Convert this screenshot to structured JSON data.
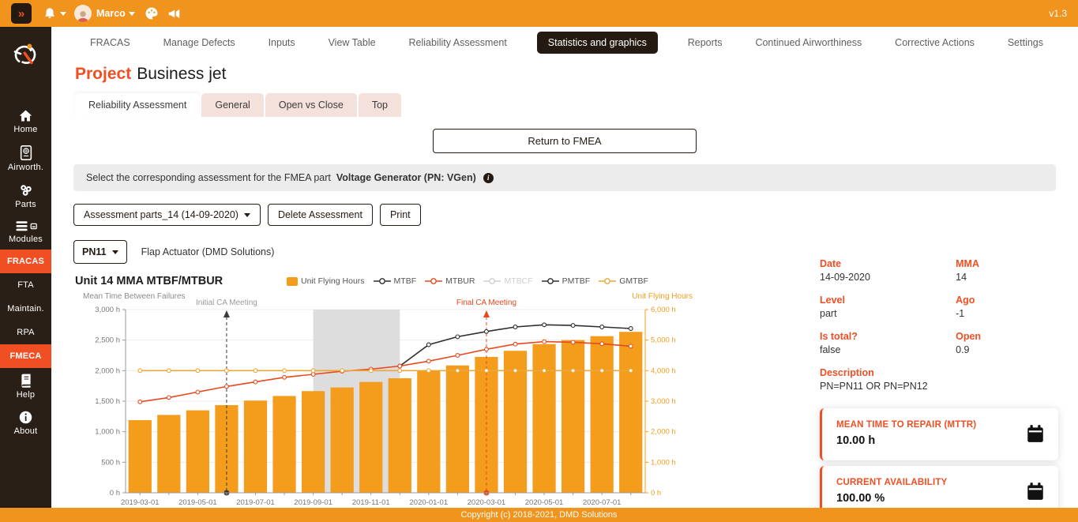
{
  "topbar": {
    "user": "Marco",
    "version": "v1.3"
  },
  "nav": {
    "items": [
      "FRACAS",
      "Manage Defects",
      "Inputs",
      "View Table",
      "Reliability Assessment",
      "Statistics and graphics",
      "Reports",
      "Continued Airworthiness",
      "Corrective Actions",
      "Settings"
    ],
    "active": "Statistics and graphics"
  },
  "sidebar": {
    "items": [
      "Home",
      "Airworth.",
      "Parts",
      "Modules",
      "FRACAS",
      "FTA",
      "Maintain.",
      "RPA",
      "FMECA",
      "Help",
      "About"
    ],
    "active_items": [
      "FRACAS",
      "FMECA"
    ]
  },
  "page": {
    "title_prefix": "Project",
    "title": "Business jet"
  },
  "subtabs": {
    "items": [
      "Reliability Assessment",
      "General",
      "Open vs Close",
      "Top"
    ],
    "active": "Reliability Assessment"
  },
  "actions": {
    "return_button": "Return to FMEA",
    "assessment_dropdown": "Assessment parts_14 (14-09-2020)",
    "delete_button": "Delete Assessment",
    "print_button": "Print",
    "pn_dropdown": "PN11",
    "part_label": "Flap Actuator (DMD Solutions)"
  },
  "info_bar": {
    "text": "Select the corresponding assessment for the FMEA part",
    "highlight": "Voltage Generator (PN: VGen)"
  },
  "details": {
    "rows": [
      {
        "label": "Date",
        "value": "14-09-2020"
      },
      {
        "label": "MMA",
        "value": "14"
      },
      {
        "label": "Level",
        "value": "part"
      },
      {
        "label": "Ago",
        "value": "-1"
      },
      {
        "label": "Is total?",
        "value": "false"
      },
      {
        "label": "Open",
        "value": "0.9"
      }
    ],
    "description": {
      "label": "Description",
      "value": "PN=PN11 OR PN=PN12"
    }
  },
  "cards": [
    {
      "title": "MEAN TIME TO REPAIR (MTTR)",
      "value": "10.00 h"
    },
    {
      "title": "CURRENT AVAILABILITY",
      "value": "100.00 %"
    }
  ],
  "footer": {
    "copyright": "Copyright (c) 2018-2021, DMD Solutions"
  },
  "colors": {
    "accent": "#F04E23",
    "orange": "#F0941E",
    "bar": "#F49D1D",
    "dark": "#241A12"
  },
  "chart_data": {
    "type": "bar",
    "title": "Unit 14 MMA MTBF/MTBUR",
    "months": [
      "2019-03",
      "2019-04",
      "2019-05",
      "2019-06",
      "2019-07",
      "2019-08",
      "2019-09",
      "2019-10",
      "2019-11",
      "2019-12",
      "2020-01",
      "2020-02",
      "2020-03",
      "2020-04",
      "2020-05",
      "2020-06",
      "2020-07",
      "2020-08"
    ],
    "x_tick_month_indices": [
      0,
      2,
      4,
      6,
      8,
      10,
      12,
      14,
      16
    ],
    "x_tick_labels": [
      "2019-03-01",
      "2019-05-01",
      "2019-07-01",
      "2019-09-01",
      "2019-11-01",
      "2020-01-01",
      "2020-03-01",
      "2020-05-01",
      "2020-07-01"
    ],
    "left_axis": {
      "label": "Mean Time Between Failures",
      "min": 0,
      "max": 3000,
      "tick_values": [
        0,
        500,
        1000,
        1500,
        2000,
        2500,
        3000
      ],
      "tick_labels": [
        "0 h",
        "500 h",
        "1,000 h",
        "1,500 h",
        "2,000 h",
        "2,500 h",
        "3,000 h"
      ]
    },
    "right_axis": {
      "label": "Unit Flying Hours",
      "min": 0,
      "max": 6000,
      "color": "#F49D1D",
      "tick_values": [
        0,
        1000,
        2000,
        3000,
        4000,
        5000,
        6000
      ],
      "tick_labels": [
        "0 h",
        "1,000 h",
        "2,000 h",
        "3,000 h",
        "4,000 h",
        "5,000 h",
        "6,000 h"
      ]
    },
    "bars": {
      "name": "Unit Flying Hours",
      "axis": "right",
      "color": "#F49D1D",
      "values": [
        2380,
        2550,
        2700,
        2870,
        3020,
        3170,
        3330,
        3450,
        3630,
        3750,
        4000,
        4170,
        4450,
        4650,
        4870,
        5000,
        5130,
        5270
      ]
    },
    "series": [
      {
        "name": "MTBF",
        "color": "#2E2E2E",
        "axis": "left",
        "start_month_index": 9,
        "values": [
          2075,
          2425,
          2555,
          2640,
          2715,
          2750,
          2740,
          2715,
          2690
        ]
      },
      {
        "name": "MTBUR",
        "color": "#E8491E",
        "axis": "left",
        "start_month_index": 0,
        "values": [
          1490,
          1560,
          1650,
          1740,
          1815,
          1890,
          1940,
          1990,
          2025,
          2075,
          2155,
          2250,
          2350,
          2435,
          2475,
          2465,
          2440,
          2400
        ]
      },
      {
        "name": "MTBCF",
        "color": "#CFCFCF",
        "axis": "left",
        "disabled": true,
        "values": []
      },
      {
        "name": "PMTBF",
        "color": "#2E2E2E",
        "axis": "left",
        "values": []
      },
      {
        "name": "GMTBF",
        "color": "#E9A83C",
        "axis": "left",
        "start_month_index": 0,
        "values": [
          2000,
          2000,
          2000,
          2000,
          2000,
          2000,
          2000,
          2000,
          2000,
          2000,
          2000,
          2000,
          2000,
          2000,
          2000,
          2000,
          2000,
          2000
        ]
      }
    ],
    "legend": [
      {
        "label": "Unit Flying Hours",
        "color": "#F49D1D",
        "marker": "square"
      },
      {
        "label": "MTBF",
        "color": "#2E2E2E",
        "marker": "line"
      },
      {
        "label": "MTBUR",
        "color": "#E8491E",
        "marker": "line"
      },
      {
        "label": "MTBCF",
        "color": "#CFCFCF",
        "marker": "line",
        "disabled": true
      },
      {
        "label": "PMTBF",
        "color": "#2E2E2E",
        "marker": "line"
      },
      {
        "label": "GMTBF",
        "color": "#E9A83C",
        "marker": "line"
      }
    ],
    "annotations": [
      {
        "label": "Initial CA Meeting",
        "month_index": 3,
        "line_color": "#3a3a3a",
        "label_color": "#9a9a9a"
      },
      {
        "label": "Final CA Meeting",
        "month_index": 12,
        "line_color": "#E8491E",
        "label_color": "#E8491E"
      }
    ],
    "shaded_region": {
      "from_month_index": 6,
      "to_month_index": 9,
      "color": "#D9D9D9"
    },
    "grid": true,
    "legend_position": "top"
  }
}
